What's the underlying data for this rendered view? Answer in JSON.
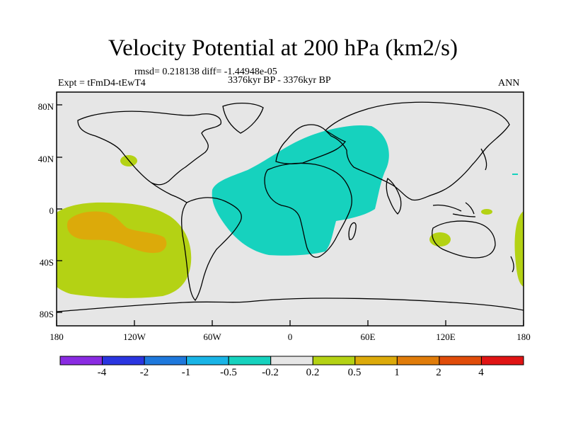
{
  "title": "Velocity Potential at 200 hPa (km2/s)",
  "rmsd_line": "rmsd= 0.218138 diff= -1.44948e-05",
  "experiment": "Expt = tFmD4-tEwT4",
  "period": "3376kyr BP - 3376kyr BP",
  "season": "ANN",
  "y_ticks": [
    "80N",
    "40N",
    "0",
    "40S",
    "80S"
  ],
  "x_ticks": [
    "180",
    "120W",
    "60W",
    "0",
    "60E",
    "120E",
    "180"
  ],
  "colorbar": {
    "colors": [
      "#8a2be2",
      "#2a35e0",
      "#1e78dc",
      "#19b4e6",
      "#16d2be",
      "#e6e6e6",
      "#b4d214",
      "#dcaa0a",
      "#e07c0a",
      "#e04c0a",
      "#e01414"
    ],
    "labels": [
      "-4",
      "-2",
      "-1",
      "-0.5",
      "-0.2",
      "0.2",
      "0.5",
      "1",
      "2",
      "4"
    ]
  },
  "map_colors": {
    "background": "#e6e6e6",
    "negative_region": "#16d2be",
    "positive_region": "#b4d214",
    "strong_positive_region": "#dcaa0a"
  }
}
